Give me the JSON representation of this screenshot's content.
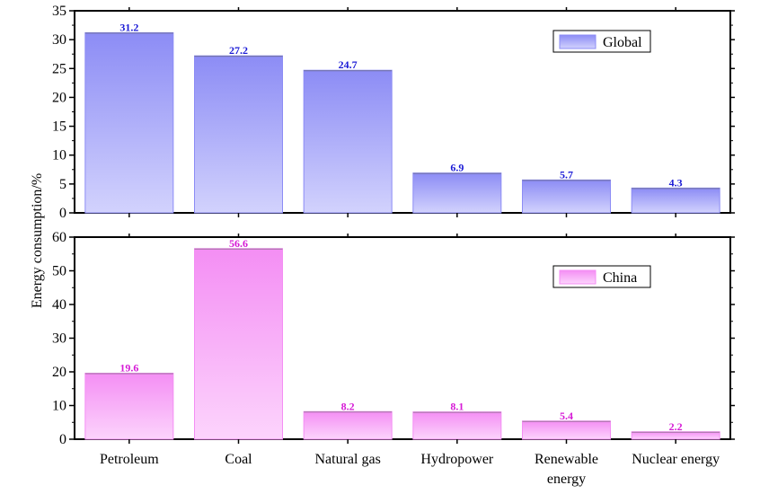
{
  "chart_data": [
    {
      "type": "bar",
      "categories": [
        "Petroleum",
        "Coal",
        "Natural gas",
        "Hydropower",
        "Renewable energy",
        "Nuclear energy"
      ],
      "series": [
        {
          "name": "Global",
          "values": [
            31.2,
            27.2,
            24.7,
            6.9,
            5.7,
            4.3
          ]
        }
      ],
      "data_labels": [
        "31.2",
        "27.2",
        "24.7",
        "6.9",
        "5.7",
        "4.3"
      ],
      "ylim": [
        0,
        35
      ],
      "yticks": [
        0,
        5,
        10,
        15,
        20,
        25,
        30,
        35
      ],
      "legend": {
        "label": "Global",
        "placement": "top-right"
      },
      "colors": {
        "bar_top": "#8c8cf5",
        "bar_bottom": "#d2d2fd",
        "label": "#1a1ad6"
      }
    },
    {
      "type": "bar",
      "categories": [
        "Petroleum",
        "Coal",
        "Natural gas",
        "Hydropower",
        "Renewable energy",
        "Nuclear energy"
      ],
      "series": [
        {
          "name": "China",
          "values": [
            19.6,
            56.6,
            8.2,
            8.1,
            5.4,
            2.2
          ]
        }
      ],
      "data_labels": [
        "19.6",
        "56.6",
        "8.2",
        "8.1",
        "5.4",
        "2.2"
      ],
      "ylim": [
        0,
        60
      ],
      "yticks": [
        0,
        10,
        20,
        30,
        40,
        50,
        60
      ],
      "legend": {
        "label": "China",
        "placement": "top-right"
      },
      "colors": {
        "bar_top": "#f48ef4",
        "bar_bottom": "#fcd4fc",
        "label": "#d61ad6"
      }
    }
  ],
  "ylabel": "Energy consumption/%",
  "category_labels": [
    [
      "Petroleum"
    ],
    [
      "Coal"
    ],
    [
      "Natural gas"
    ],
    [
      "Hydropower"
    ],
    [
      "Renewable",
      "energy"
    ],
    [
      "Nuclear energy"
    ]
  ]
}
